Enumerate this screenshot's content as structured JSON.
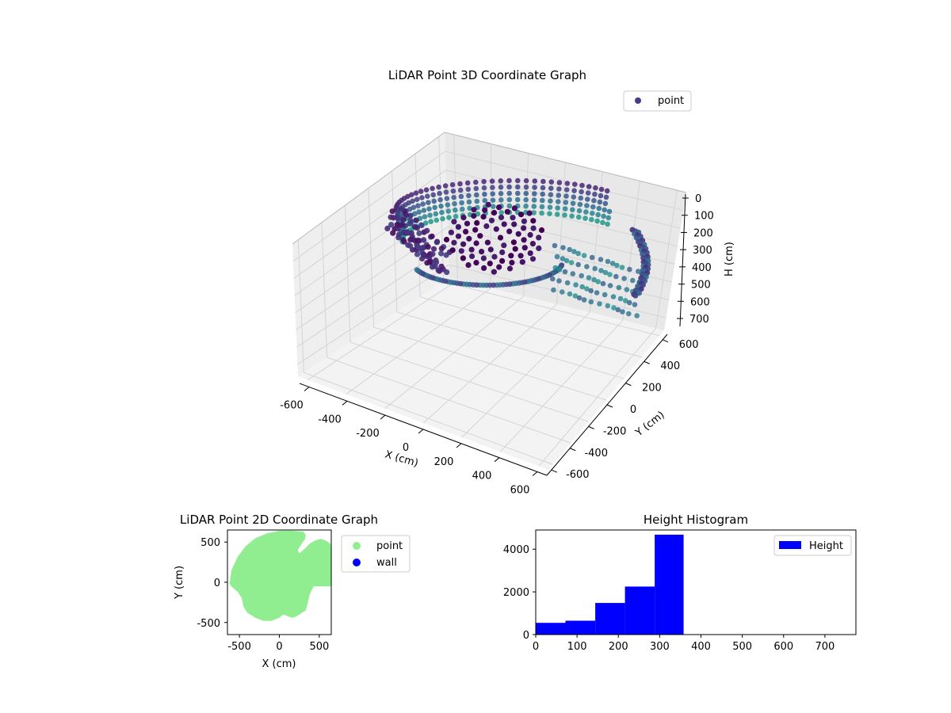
{
  "colors": {
    "point_3d": "#433e85",
    "point_2d": "#90ee90",
    "wall": "#0000ff",
    "hist_bar": "#0000ff",
    "pane": "#f2f2f2",
    "grid": "#d4d4d4"
  },
  "chart_data": [
    {
      "type": "scatter",
      "projection": "3d",
      "title": "LiDAR Point 3D Coordinate Graph",
      "xlabel": "X (cm)",
      "ylabel": "Y (cm)",
      "zlabel": "H (cm)",
      "xlim": [
        -650,
        650
      ],
      "ylim": [
        -650,
        650
      ],
      "zlim": [
        770,
        0
      ],
      "z_axis_inverted": true,
      "x_ticks": [
        -600,
        -400,
        -200,
        0,
        200,
        400,
        600
      ],
      "y_ticks": [
        -600,
        -400,
        -200,
        0,
        200,
        400,
        600
      ],
      "z_ticks": [
        0,
        100,
        200,
        300,
        400,
        500,
        600,
        700
      ],
      "colormap": "viridis (by height)",
      "legend": {
        "entries": [
          "point"
        ],
        "position": "top-right"
      },
      "grid": true,
      "point_cloud_summary": {
        "outer_ring_radius_cm": 610,
        "ring_height_range_cm": [
          100,
          330
        ],
        "cluster_center_cm": {
          "x": 0,
          "y": 120,
          "h": 220
        }
      }
    },
    {
      "type": "scatter",
      "title": "LiDAR Point 2D Coordinate Graph",
      "xlabel": "X (cm)",
      "ylabel": "Y (cm)",
      "xlim": [
        -650,
        650
      ],
      "ylim": [
        -650,
        650
      ],
      "x_ticks": [
        -500,
        0,
        500
      ],
      "y_ticks": [
        -500,
        0,
        500
      ],
      "series": [
        {
          "name": "point",
          "color": "#90ee90"
        },
        {
          "name": "wall",
          "color": "#0000ff"
        }
      ],
      "legend": {
        "entries": [
          "point",
          "wall"
        ],
        "position": "outside-right"
      },
      "footprint_polygon_cm": [
        [
          -620,
          0
        ],
        [
          -600,
          150
        ],
        [
          -520,
          320
        ],
        [
          -420,
          450
        ],
        [
          -300,
          550
        ],
        [
          -150,
          610
        ],
        [
          0,
          640
        ],
        [
          150,
          640
        ],
        [
          300,
          630
        ],
        [
          330,
          590
        ],
        [
          320,
          530
        ],
        [
          280,
          480
        ],
        [
          230,
          400
        ],
        [
          250,
          360
        ],
        [
          320,
          420
        ],
        [
          380,
          480
        ],
        [
          450,
          520
        ],
        [
          520,
          540
        ],
        [
          580,
          520
        ],
        [
          640,
          480
        ],
        [
          650,
          400
        ],
        [
          650,
          -50
        ],
        [
          520,
          -50
        ],
        [
          430,
          -50
        ],
        [
          380,
          -150
        ],
        [
          350,
          -280
        ],
        [
          330,
          -350
        ],
        [
          250,
          -400
        ],
        [
          200,
          -430
        ],
        [
          150,
          -440
        ],
        [
          100,
          -420
        ],
        [
          50,
          -400
        ],
        [
          0,
          -440
        ],
        [
          -100,
          -480
        ],
        [
          -200,
          -480
        ],
        [
          -300,
          -440
        ],
        [
          -400,
          -380
        ],
        [
          -450,
          -300
        ],
        [
          -470,
          -200
        ],
        [
          -520,
          -120
        ],
        [
          -600,
          -50
        ],
        [
          -630,
          -10
        ]
      ]
    },
    {
      "type": "bar",
      "title": "Height Histogram",
      "xlim": [
        0,
        775
      ],
      "ylim": [
        0,
        4900
      ],
      "x_ticks": [
        0,
        100,
        200,
        300,
        400,
        500,
        600,
        700
      ],
      "y_ticks": [
        0,
        2000,
        4000
      ],
      "bins": [
        {
          "start": 0,
          "end": 72,
          "count": 550
        },
        {
          "start": 72,
          "end": 144,
          "count": 650
        },
        {
          "start": 144,
          "end": 216,
          "count": 1480
        },
        {
          "start": 216,
          "end": 288,
          "count": 2250
        },
        {
          "start": 288,
          "end": 358,
          "count": 4680
        }
      ],
      "series": [
        {
          "name": "Height",
          "color": "#0000ff"
        }
      ],
      "legend": {
        "entries": [
          "Height"
        ],
        "position": "top-right"
      }
    }
  ]
}
